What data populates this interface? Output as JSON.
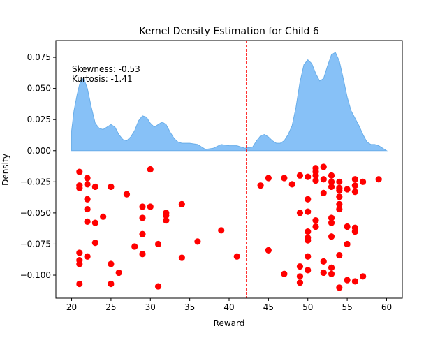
{
  "chart_data": {
    "type": "scatter",
    "title": "Kernel Density Estimation for Child 6",
    "xlabel": "Reward",
    "ylabel": "Density",
    "xlim": [
      18.0,
      62.0
    ],
    "ylim": [
      -0.1185,
      0.0885
    ],
    "x_ticks": [
      20,
      25,
      30,
      35,
      40,
      45,
      50,
      55,
      60
    ],
    "x_tick_labels": [
      "20",
      "25",
      "30",
      "35",
      "40",
      "45",
      "50",
      "55",
      "60"
    ],
    "y_ticks": [
      -0.1,
      -0.075,
      -0.05,
      -0.025,
      0.0,
      0.025,
      0.05,
      0.075
    ],
    "y_tick_labels": [
      "−0.100",
      "−0.075",
      "−0.050",
      "−0.025",
      "0.000",
      "0.025",
      "0.050",
      "0.075"
    ],
    "grid": false,
    "colors": {
      "kde_fill": "#87c1f7",
      "kde_line": "#6aaee9",
      "points": "#ff0000",
      "mean_line": "#ff0000"
    },
    "stats_text": {
      "skewness": "Skewness: -0.53",
      "kurtosis": "Kurtosis: -1.41"
    },
    "mean_line_x": 42.2,
    "kde": {
      "name": "",
      "x": [
        20,
        20.3,
        20.7,
        21,
        21.3,
        21.6,
        22,
        22.5,
        23,
        23.5,
        24,
        24.5,
        25,
        25.5,
        26,
        26.5,
        27,
        27.5,
        28,
        28.5,
        29,
        29.5,
        30,
        30.5,
        31,
        31.5,
        32,
        32.5,
        33,
        33.5,
        34,
        35,
        36,
        37,
        38,
        39,
        40,
        41,
        42,
        43,
        43.5,
        44,
        44.5,
        45,
        45.5,
        46,
        46.5,
        47,
        47.5,
        48,
        48.5,
        49,
        49.5,
        50,
        50.5,
        51,
        51.5,
        52,
        52.5,
        53,
        53.5,
        54,
        54.5,
        55,
        55.5,
        56,
        56.5,
        57,
        57.5,
        58,
        58.5,
        59,
        59.5,
        60
      ],
      "density": [
        0.016,
        0.032,
        0.045,
        0.053,
        0.058,
        0.057,
        0.05,
        0.035,
        0.022,
        0.018,
        0.017,
        0.019,
        0.021,
        0.019,
        0.013,
        0.009,
        0.008,
        0.011,
        0.016,
        0.024,
        0.028,
        0.027,
        0.022,
        0.019,
        0.021,
        0.023,
        0.021,
        0.015,
        0.01,
        0.007,
        0.006,
        0.006,
        0.005,
        0.001,
        0.002,
        0.005,
        0.004,
        0.004,
        0.002,
        0.003,
        0.008,
        0.012,
        0.013,
        0.011,
        0.008,
        0.006,
        0.006,
        0.008,
        0.013,
        0.02,
        0.035,
        0.055,
        0.069,
        0.073,
        0.07,
        0.062,
        0.056,
        0.058,
        0.068,
        0.077,
        0.079,
        0.072,
        0.058,
        0.043,
        0.032,
        0.026,
        0.02,
        0.013,
        0.007,
        0.005,
        0.005,
        0.004,
        0.002,
        0.0
      ]
    },
    "points": [
      [
        21,
        -0.017
      ],
      [
        21,
        -0.028
      ],
      [
        21,
        -0.03
      ],
      [
        21,
        -0.082
      ],
      [
        21,
        -0.088
      ],
      [
        21,
        -0.091
      ],
      [
        21,
        -0.107
      ],
      [
        22,
        -0.022
      ],
      [
        22,
        -0.027
      ],
      [
        22,
        -0.039
      ],
      [
        22,
        -0.047
      ],
      [
        22,
        -0.057
      ],
      [
        22,
        -0.085
      ],
      [
        23,
        -0.029
      ],
      [
        23,
        -0.058
      ],
      [
        23,
        -0.074
      ],
      [
        24,
        -0.053
      ],
      [
        25,
        -0.029
      ],
      [
        25,
        -0.091
      ],
      [
        25,
        -0.107
      ],
      [
        26,
        -0.098
      ],
      [
        27,
        -0.035
      ],
      [
        28,
        -0.077
      ],
      [
        29,
        -0.045
      ],
      [
        29,
        -0.054
      ],
      [
        29,
        -0.067
      ],
      [
        29,
        -0.083
      ],
      [
        30,
        -0.015
      ],
      [
        30,
        -0.045
      ],
      [
        31,
        -0.075
      ],
      [
        31,
        -0.109
      ],
      [
        32,
        -0.05
      ],
      [
        32,
        -0.052
      ],
      [
        32,
        -0.056
      ],
      [
        34,
        -0.043
      ],
      [
        34,
        -0.086
      ],
      [
        36,
        -0.073
      ],
      [
        39,
        -0.064
      ],
      [
        41,
        -0.085
      ],
      [
        44,
        -0.028
      ],
      [
        45,
        -0.022
      ],
      [
        45,
        -0.08
      ],
      [
        47,
        -0.022
      ],
      [
        47,
        -0.099
      ],
      [
        48,
        -0.027
      ],
      [
        49,
        -0.02
      ],
      [
        49,
        -0.05
      ],
      [
        49,
        -0.093
      ],
      [
        49,
        -0.101
      ],
      [
        49,
        -0.106
      ],
      [
        50,
        -0.021
      ],
      [
        50,
        -0.039
      ],
      [
        50,
        -0.049
      ],
      [
        50,
        -0.065
      ],
      [
        50,
        -0.07
      ],
      [
        50,
        -0.072
      ],
      [
        50,
        -0.085
      ],
      [
        50,
        -0.096
      ],
      [
        51,
        -0.014
      ],
      [
        51,
        -0.017
      ],
      [
        51,
        -0.02
      ],
      [
        51,
        -0.024
      ],
      [
        51,
        -0.056
      ],
      [
        51,
        -0.061
      ],
      [
        52,
        -0.013
      ],
      [
        52,
        -0.023
      ],
      [
        52,
        -0.034
      ],
      [
        52,
        -0.089
      ],
      [
        52,
        -0.098
      ],
      [
        53,
        -0.02
      ],
      [
        53,
        -0.025
      ],
      [
        53,
        -0.029
      ],
      [
        53,
        -0.054
      ],
      [
        53,
        -0.058
      ],
      [
        53,
        -0.069
      ],
      [
        53,
        -0.094
      ],
      [
        53,
        -0.099
      ],
      [
        54,
        -0.025
      ],
      [
        54,
        -0.03
      ],
      [
        54,
        -0.032
      ],
      [
        54,
        -0.037
      ],
      [
        54,
        -0.043
      ],
      [
        54,
        -0.047
      ],
      [
        54,
        -0.084
      ],
      [
        54,
        -0.11
      ],
      [
        55,
        -0.031
      ],
      [
        55,
        -0.061
      ],
      [
        55,
        -0.075
      ],
      [
        55,
        -0.104
      ],
      [
        56,
        -0.023
      ],
      [
        56,
        -0.028
      ],
      [
        56,
        -0.033
      ],
      [
        56,
        -0.062
      ],
      [
        56,
        -0.065
      ],
      [
        56,
        -0.105
      ],
      [
        57,
        -0.025
      ],
      [
        57,
        -0.101
      ],
      [
        59,
        -0.023
      ]
    ]
  }
}
